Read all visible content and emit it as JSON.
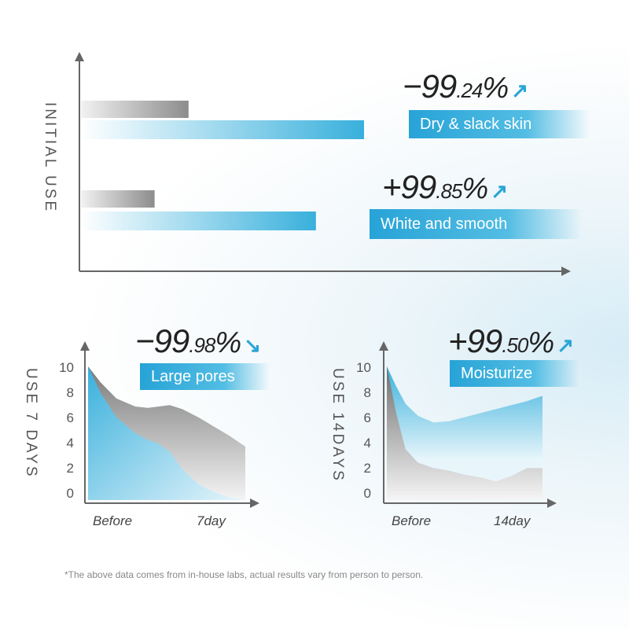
{
  "top_chart": {
    "axis_label": "INITIAL USE",
    "annotations": [
      {
        "sign_value": "−99",
        "decimals": ".24",
        "percent": "%",
        "arrow": "↗",
        "tag": "Dry & slack skin"
      },
      {
        "sign_value": "+99",
        "decimals": ".85",
        "percent": "%",
        "arrow": "↗",
        "tag": "White and smooth"
      }
    ]
  },
  "chart_data": [
    {
      "type": "bar",
      "orientation": "horizontal",
      "title": "",
      "ylabel": "INITIAL USE",
      "grid": false,
      "series": [
        {
          "values": [
            0.38,
            0.26
          ],
          "color": "#9a9a9a"
        },
        {
          "values": [
            1.0,
            0.83
          ],
          "color": "#3ab1dd"
        }
      ],
      "categories": [
        "Dry & slack skin",
        "White and smooth"
      ],
      "annotations": [
        "−99.24%",
        "+99.85%"
      ]
    },
    {
      "type": "area",
      "title": "Large pores",
      "annotation": "−99.98%",
      "ylabel": "USE 7 DAYS",
      "ylim": [
        0,
        10
      ],
      "yticks": [
        "10",
        "8",
        "6",
        "4",
        "2",
        "0"
      ],
      "xlabels": [
        "Before",
        "7day"
      ],
      "x": [
        0,
        0.08,
        0.18,
        0.3,
        0.38,
        0.45,
        0.52,
        0.6,
        0.7,
        0.8,
        0.9,
        1.0
      ],
      "series": [
        {
          "name": "gray",
          "color": "#8a8a8a",
          "values": [
            10,
            8.8,
            7.6,
            7.0,
            6.9,
            7.0,
            7.1,
            6.8,
            6.2,
            5.5,
            4.8,
            4.0
          ]
        },
        {
          "name": "blue",
          "color": "#3ab1dd",
          "values": [
            10,
            8.0,
            6.2,
            5.0,
            4.5,
            4.2,
            3.6,
            2.3,
            1.2,
            0.6,
            0.2,
            0.0
          ]
        }
      ]
    },
    {
      "type": "area",
      "title": "Moisturize",
      "annotation": "+99.50%",
      "ylabel": "USE 14DAYS",
      "ylim": [
        0,
        10
      ],
      "yticks": [
        "10",
        "8",
        "6",
        "4",
        "2",
        "0"
      ],
      "xlabels": [
        "Before",
        "14day"
      ],
      "x": [
        0,
        0.06,
        0.12,
        0.2,
        0.3,
        0.4,
        0.5,
        0.6,
        0.7,
        0.8,
        0.9,
        1.0
      ],
      "series": [
        {
          "name": "blue",
          "color": "#3ab1dd",
          "values": [
            10,
            8.5,
            7.2,
            6.3,
            5.8,
            5.9,
            6.2,
            6.5,
            6.8,
            7.1,
            7.4,
            7.8
          ]
        },
        {
          "name": "gray",
          "color": "#8a8a8a",
          "values": [
            10,
            6.5,
            3.8,
            2.8,
            2.4,
            2.2,
            1.9,
            1.7,
            1.4,
            1.8,
            2.4,
            2.4
          ]
        }
      ]
    }
  ],
  "bottom_left": {
    "sign_value": "−99",
    "decimals": ".98",
    "percent": "%",
    "arrow": "↘",
    "tag": "Large pores",
    "axis_label": "USE 7 DAYS",
    "yticks": [
      "10",
      "8",
      "6",
      "4",
      "2",
      "0"
    ],
    "x_before": "Before",
    "x_after": "7day"
  },
  "bottom_right": {
    "sign_value": "+99",
    "decimals": ".50",
    "percent": "%",
    "arrow": "↗",
    "tag": "Moisturize",
    "axis_label": "USE 14DAYS",
    "yticks": [
      "10",
      "8",
      "6",
      "4",
      "2",
      "0"
    ],
    "x_before": "Before",
    "x_after": "14day"
  },
  "footnote": "*The above data comes from in-house labs, actual results vary from person to person.",
  "colors": {
    "accent": "#2aa6d6",
    "gray": "#8a8a8a",
    "axis": "#555555"
  }
}
